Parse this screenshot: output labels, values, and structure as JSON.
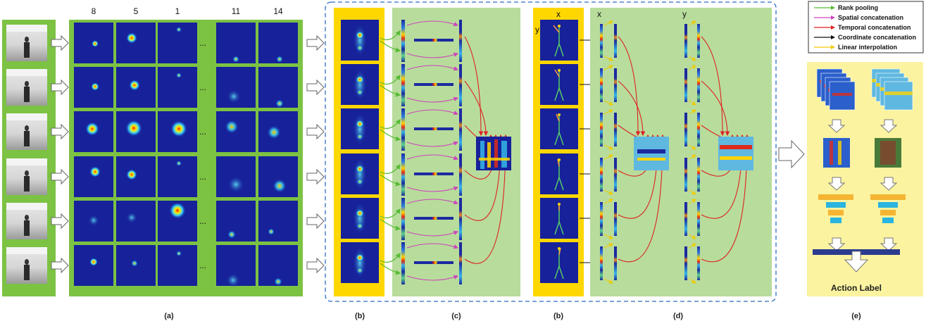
{
  "heatmap_indices": [
    "8",
    "5",
    "1",
    "11",
    "14"
  ],
  "ellipsis": "...",
  "panel_labels": {
    "a": "(a)",
    "b1": "(b)",
    "c": "(c)",
    "b2": "(b)",
    "d": "(d)",
    "e": "(e)"
  },
  "axis_labels": {
    "x1": "x",
    "y1": "y",
    "x2": "x",
    "y2": "y"
  },
  "legend": [
    {
      "label": "Rank pooling",
      "color": "#55bb33"
    },
    {
      "label": "Spatial concatenation",
      "color": "#cc44bb"
    },
    {
      "label": "Temporal concatenation",
      "color": "#dd2222"
    },
    {
      "label": "Coordinate concatenation",
      "color": "#111111"
    },
    {
      "label": "Linear interpolation",
      "color": "#eecc00"
    }
  ],
  "action_label": "Action Label",
  "colors": {
    "green_panel": "#7cc243",
    "light_green": "#b8dc9c",
    "yellow": "#ffd700",
    "light_yellow": "#fbf3a0",
    "dashed_border": "#2b6cc4",
    "heat_bg": "#16219a"
  }
}
